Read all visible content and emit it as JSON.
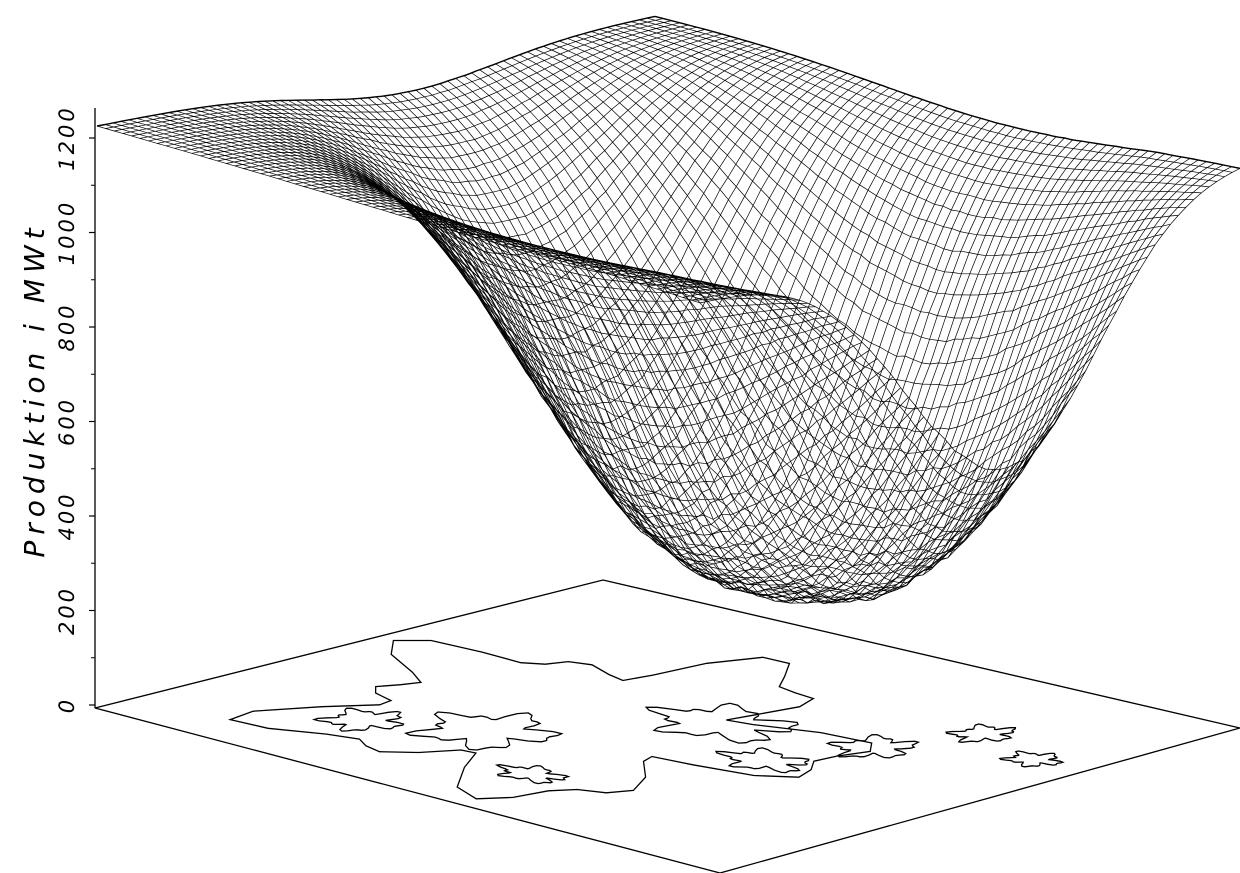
{
  "chart_data": {
    "type": "surface",
    "title": "",
    "ylabel": "Produktion i MWt",
    "z_ticks": [
      "0",
      "200",
      "400",
      "600",
      "800",
      "1000",
      "1200"
    ],
    "zlim": [
      0,
      1250
    ],
    "surface": {
      "edge_height": 1230,
      "bottom_height": 330,
      "description_level_values": [
        1230,
        1000,
        800,
        600,
        450,
        330
      ]
    },
    "base_plane": {
      "contours": "coastline outline",
      "grid": false
    },
    "line_color": "#000000"
  }
}
